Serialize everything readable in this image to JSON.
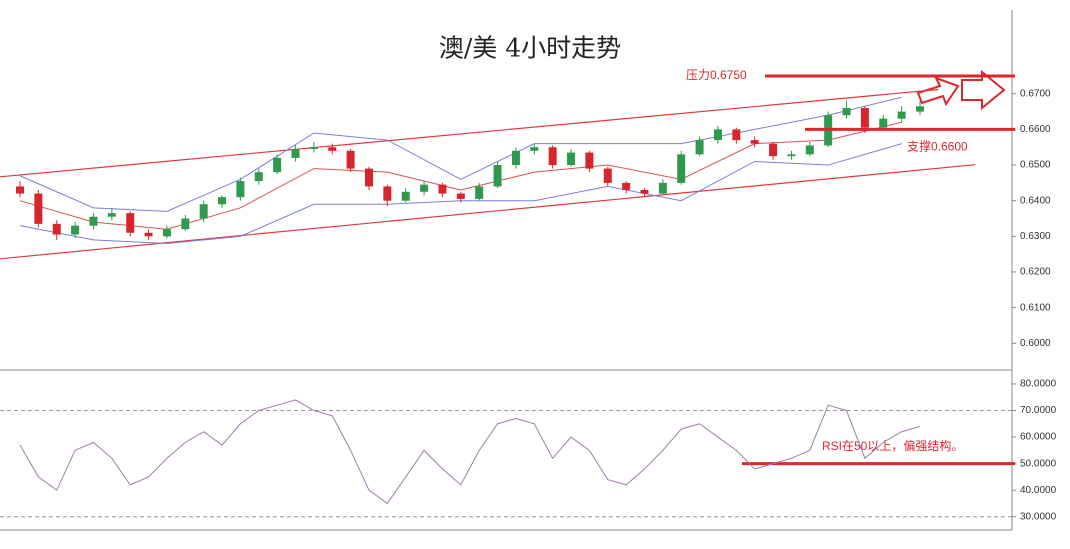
{
  "chart_data": [
    {
      "type": "candlestick",
      "title": "澳/美 4小时走势",
      "open": [
        0.644,
        0.642,
        0.6335,
        0.6305,
        0.633,
        0.6355,
        0.6365,
        0.631,
        0.63,
        0.632,
        0.635,
        0.639,
        0.641,
        0.6455,
        0.648,
        0.652,
        0.6545,
        0.655,
        0.654,
        0.649,
        0.644,
        0.64,
        0.6425,
        0.6445,
        0.642,
        0.6405,
        0.644,
        0.65,
        0.654,
        0.655,
        0.65,
        0.6535,
        0.649,
        0.645,
        0.643,
        0.642,
        0.645,
        0.653,
        0.657,
        0.66,
        0.657,
        0.656,
        0.6525,
        0.653,
        0.6555,
        0.664,
        0.666,
        0.6605,
        0.663,
        0.665
      ],
      "high": [
        0.6455,
        0.643,
        0.6345,
        0.634,
        0.6365,
        0.638,
        0.637,
        0.632,
        0.633,
        0.636,
        0.64,
        0.6415,
        0.6465,
        0.649,
        0.653,
        0.6555,
        0.6565,
        0.656,
        0.6545,
        0.6495,
        0.6445,
        0.6435,
        0.6455,
        0.645,
        0.6425,
        0.645,
        0.651,
        0.655,
        0.656,
        0.6555,
        0.6545,
        0.654,
        0.6495,
        0.6455,
        0.6435,
        0.646,
        0.654,
        0.658,
        0.661,
        0.6605,
        0.658,
        0.6565,
        0.654,
        0.6565,
        0.665,
        0.668,
        0.6665,
        0.664,
        0.6665,
        0.668
      ],
      "low": [
        0.641,
        0.6325,
        0.629,
        0.6295,
        0.632,
        0.6345,
        0.63,
        0.629,
        0.6295,
        0.6315,
        0.634,
        0.638,
        0.64,
        0.6445,
        0.6475,
        0.651,
        0.6535,
        0.653,
        0.648,
        0.643,
        0.6385,
        0.6395,
        0.6415,
        0.641,
        0.6395,
        0.64,
        0.6435,
        0.649,
        0.653,
        0.649,
        0.6495,
        0.648,
        0.644,
        0.642,
        0.641,
        0.6415,
        0.6445,
        0.6525,
        0.656,
        0.656,
        0.655,
        0.6515,
        0.6515,
        0.6525,
        0.655,
        0.663,
        0.659,
        0.66,
        0.662,
        0.664
      ],
      "close": [
        0.642,
        0.6335,
        0.6305,
        0.633,
        0.6355,
        0.6365,
        0.631,
        0.63,
        0.632,
        0.635,
        0.639,
        0.641,
        0.6455,
        0.648,
        0.652,
        0.6545,
        0.655,
        0.654,
        0.649,
        0.644,
        0.64,
        0.6425,
        0.6445,
        0.642,
        0.6405,
        0.644,
        0.65,
        0.654,
        0.655,
        0.65,
        0.6535,
        0.649,
        0.645,
        0.643,
        0.642,
        0.645,
        0.653,
        0.657,
        0.66,
        0.657,
        0.656,
        0.6525,
        0.653,
        0.6555,
        0.664,
        0.666,
        0.6605,
        0.663,
        0.665,
        0.6665
      ],
      "up_color": "#2e9a4e",
      "down_color": "#d7262b",
      "bands": [
        {
          "color": "#d9534f",
          "x": [
            0,
            4,
            8,
            12,
            16,
            20,
            24,
            28,
            32,
            36,
            40,
            44,
            48
          ],
          "values": [
            0.64,
            0.634,
            0.632,
            0.638,
            0.649,
            0.648,
            0.643,
            0.648,
            0.65,
            0.646,
            0.656,
            0.657,
            0.662
          ]
        },
        {
          "color": "#7b7fd8",
          "x": [
            0,
            4,
            8,
            12,
            16,
            20,
            24,
            28,
            32,
            36,
            40,
            44,
            48
          ],
          "values": [
            0.647,
            0.638,
            0.637,
            0.646,
            0.659,
            0.657,
            0.646,
            0.656,
            0.656,
            0.656,
            0.66,
            0.664,
            0.669
          ]
        },
        {
          "color": "#7b7fd8",
          "x": [
            0,
            4,
            8,
            12,
            16,
            20,
            24,
            28,
            32,
            36,
            40,
            44,
            48
          ],
          "values": [
            0.633,
            0.629,
            0.628,
            0.63,
            0.639,
            0.639,
            0.64,
            0.64,
            0.644,
            0.64,
            0.651,
            0.65,
            0.656
          ]
        }
      ],
      "channel": [
        {
          "color": "#e0393e",
          "x": [
            0,
            50
          ],
          "values": [
            0.6467,
            0.6712
          ]
        },
        {
          "color": "#e0393e",
          "x": [
            0,
            52
          ],
          "values": [
            0.6237,
            0.6501
          ]
        }
      ],
      "levels": [
        {
          "label": "压力0.6750",
          "value": 0.675,
          "color": "#e0262b"
        },
        {
          "label": "支撑0.6600",
          "value": 0.66,
          "color": "#e0262b"
        }
      ],
      "ylim": [
        0.5925,
        0.6935
      ],
      "yticks": [
        {
          "value": 0.6,
          "label": "0.6000"
        },
        {
          "value": 0.61,
          "label": "0.6100"
        },
        {
          "value": 0.62,
          "label": "0.6200"
        },
        {
          "value": 0.63,
          "label": "0.6300"
        },
        {
          "value": 0.64,
          "label": "0.6400"
        },
        {
          "value": 0.65,
          "label": "0.6500"
        },
        {
          "value": 0.66,
          "label": "0.6600"
        },
        {
          "value": 0.67,
          "label": "0.6700"
        }
      ]
    },
    {
      "type": "line",
      "color": "#a07aa8",
      "values": [
        57,
        45,
        40,
        55,
        58,
        52,
        42,
        45,
        52,
        58,
        62,
        57,
        65,
        70,
        72,
        74,
        70,
        68,
        55,
        40,
        35,
        45,
        55,
        48,
        42,
        55,
        65,
        67,
        65,
        52,
        60,
        55,
        44,
        42,
        48,
        55,
        63,
        65,
        60,
        55,
        48,
        50,
        52,
        55,
        72,
        70,
        52,
        58,
        62,
        64
      ],
      "levels": [
        {
          "value": 70,
          "dashed": true,
          "color": "#999999"
        },
        {
          "value": 30,
          "dashed": true,
          "color": "#999999"
        },
        {
          "value": 50,
          "label": "RSI在50以上，偏强结构。",
          "color": "#e0262b"
        }
      ],
      "ylim": [
        25,
        84.5
      ],
      "yticks": [
        {
          "value": 30,
          "label": "30.0000"
        },
        {
          "value": 40,
          "label": "40.0000"
        },
        {
          "value": 50,
          "label": "50.0000"
        },
        {
          "value": 60,
          "label": "60.0000"
        },
        {
          "value": 70,
          "label": "70.0000"
        },
        {
          "value": 80,
          "label": "80.0000"
        }
      ]
    }
  ]
}
